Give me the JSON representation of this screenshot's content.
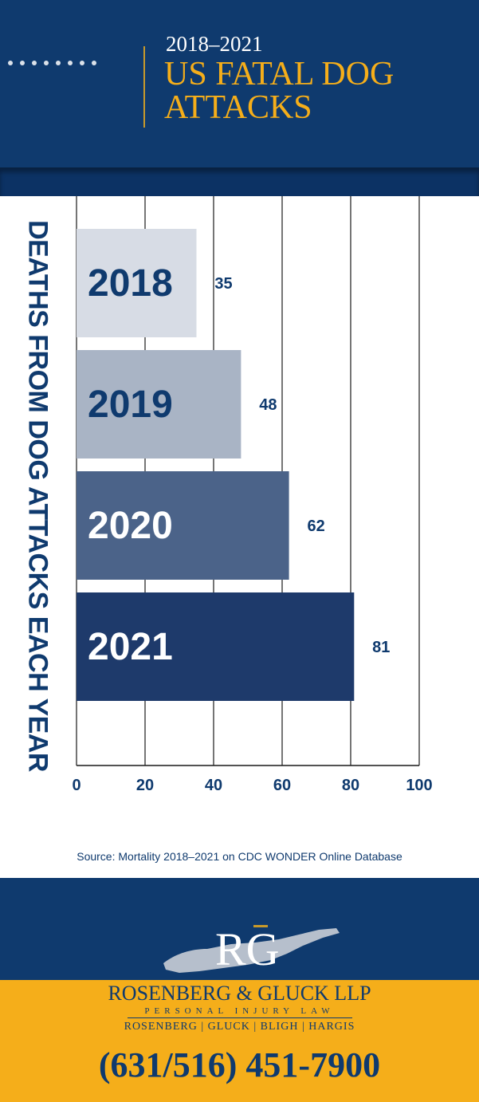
{
  "header": {
    "years": "2018–2021",
    "title": "US FATAL DOG ATTACKS"
  },
  "chart_data": {
    "type": "bar",
    "orientation": "horizontal",
    "categories": [
      "2018",
      "2019",
      "2020",
      "2021"
    ],
    "values": [
      35,
      48,
      62,
      81
    ],
    "ylabel": "DEATHS FROM DOG ATTACKS EACH YEAR",
    "xlim": [
      0,
      100
    ],
    "xticks": [
      "0",
      "20",
      "40",
      "60",
      "80",
      "100"
    ],
    "grid": true,
    "colors": [
      "#d7dce5",
      "#a9b4c5",
      "#4b6389",
      "#1e3a6b"
    ],
    "label_colors": [
      "#0f3a6e",
      "#0f3a6e",
      "#ffffff",
      "#ffffff"
    ]
  },
  "source": "Source: Mortality 2018–2021 on CDC WONDER Online Database",
  "footer": {
    "logo_letters": "RG",
    "firm_name": "ROSENBERG & GLUCK LLP",
    "tagline": "PERSONAL INJURY LAW",
    "partners": "ROSENBERG | GLUCK | BLIGH | HARGIS",
    "phone": "(631/516) 451-7900"
  },
  "colors": {
    "navy": "#0f3a6e",
    "gold": "#f5ae1a"
  }
}
